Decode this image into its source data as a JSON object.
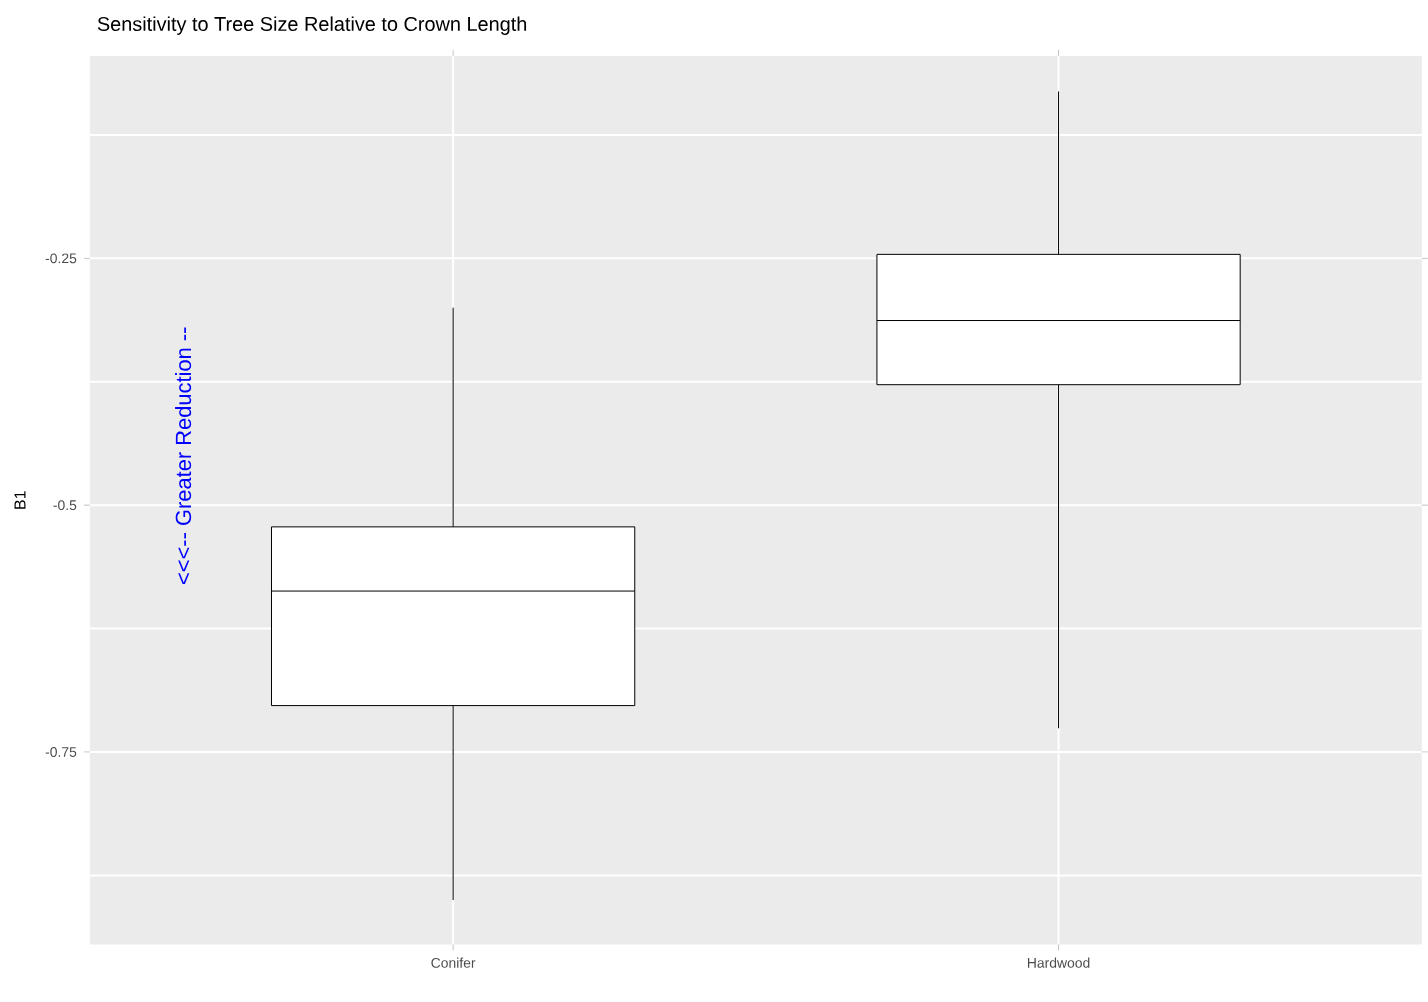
{
  "chart_data": {
    "type": "box",
    "title": "Sensitivity to Tree Size Relative to Crown Length",
    "ylabel": "B1",
    "categories": [
      "Conifer",
      "Hardwood"
    ],
    "boxes": [
      {
        "low": -0.9,
        "q1": -0.703,
        "median": -0.587,
        "q3": -0.522,
        "high": -0.3
      },
      {
        "low": -0.726,
        "q1": -0.378,
        "median": -0.313,
        "q3": -0.246,
        "high": -0.081
      }
    ],
    "ylim": [
      -0.945,
      -0.045
    ],
    "yticks": [
      {
        "value": -0.125,
        "label": null
      },
      -0.25,
      {
        "value": -0.375,
        "label": null
      },
      -0.5,
      {
        "value": -0.625,
        "label": null
      },
      -0.75,
      {
        "value": -0.875,
        "label": null
      }
    ],
    "grid": true,
    "annotations": [
      "<<<-- Greater Reduction --"
    ]
  }
}
